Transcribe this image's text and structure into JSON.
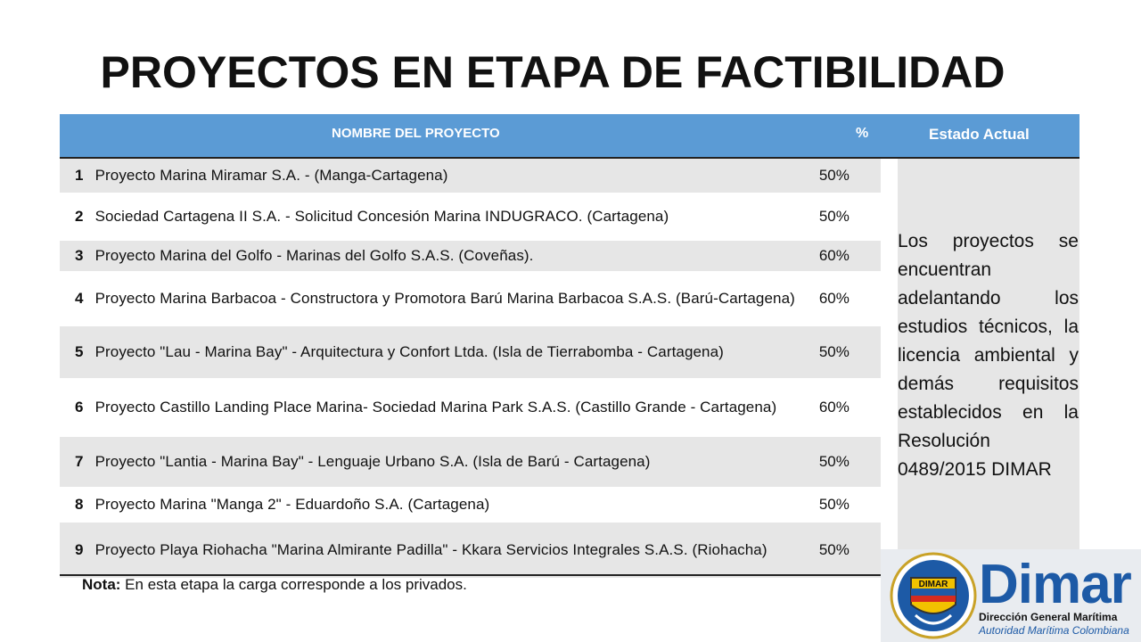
{
  "title": "PROYECTOS EN ETAPA DE FACTIBILIDAD",
  "table": {
    "headers": {
      "name": "NOMBRE DEL PROYECTO",
      "pct": "%",
      "estado": "Estado Actual"
    },
    "rows": [
      {
        "num": "1",
        "name": "Proyecto Marina Miramar S.A. - (Manga-Cartagena)",
        "pct": "50%"
      },
      {
        "num": "2",
        "name": "Sociedad Cartagena II S.A. - Solicitud Concesión Marina INDUGRACO. (Cartagena)",
        "pct": "50%"
      },
      {
        "num": "3",
        "name": "Proyecto Marina del Golfo - Marinas del Golfo S.A.S. (Coveñas).",
        "pct": "60%"
      },
      {
        "num": "4",
        "name": "Proyecto Marina Barbacoa - Constructora y Promotora Barú Marina Barbacoa S.A.S. (Barú-Cartagena)",
        "pct": "60%"
      },
      {
        "num": "5",
        "name": "Proyecto \"Lau - Marina Bay\" - Arquitectura y Confort Ltda. (Isla de Tierrabomba - Cartagena)",
        "pct": "50%"
      },
      {
        "num": "6",
        "name": "Proyecto Castillo Landing Place Marina- Sociedad Marina Park S.A.S. (Castillo Grande - Cartagena)",
        "pct": "60%"
      },
      {
        "num": "7",
        "name": "Proyecto \"Lantia - Marina Bay\" - Lenguaje Urbano S.A. (Isla de Barú - Cartagena)",
        "pct": "50%"
      },
      {
        "num": "8",
        "name": "Proyecto Marina \"Manga 2\" - Eduardoño S.A. (Cartagena)",
        "pct": "50%"
      },
      {
        "num": "9",
        "name": "Proyecto Playa Riohacha \"Marina Almirante Padilla\" - Kkara Servicios Integrales S.A.S. (Riohacha)",
        "pct": "50%"
      }
    ],
    "estado_actual": "Los proyectos se encuentran adelantando los estudios técnicos, la licencia ambiental y demás requisitos establecidos en la Resolución 0489/2015 DIMAR"
  },
  "nota": {
    "label": "Nota:",
    "text": " En esta etapa la carga corresponde a los privados."
  },
  "logo": {
    "word": "Dimar",
    "subtitle1": "Dirección General Marítima",
    "subtitle2": "Autoridad Marítima Colombiana",
    "seal_text": "DIMAR"
  },
  "colors": {
    "header_bg": "#5b9bd5",
    "shade": "#e6e6e6",
    "brand": "#1d5aa6"
  }
}
